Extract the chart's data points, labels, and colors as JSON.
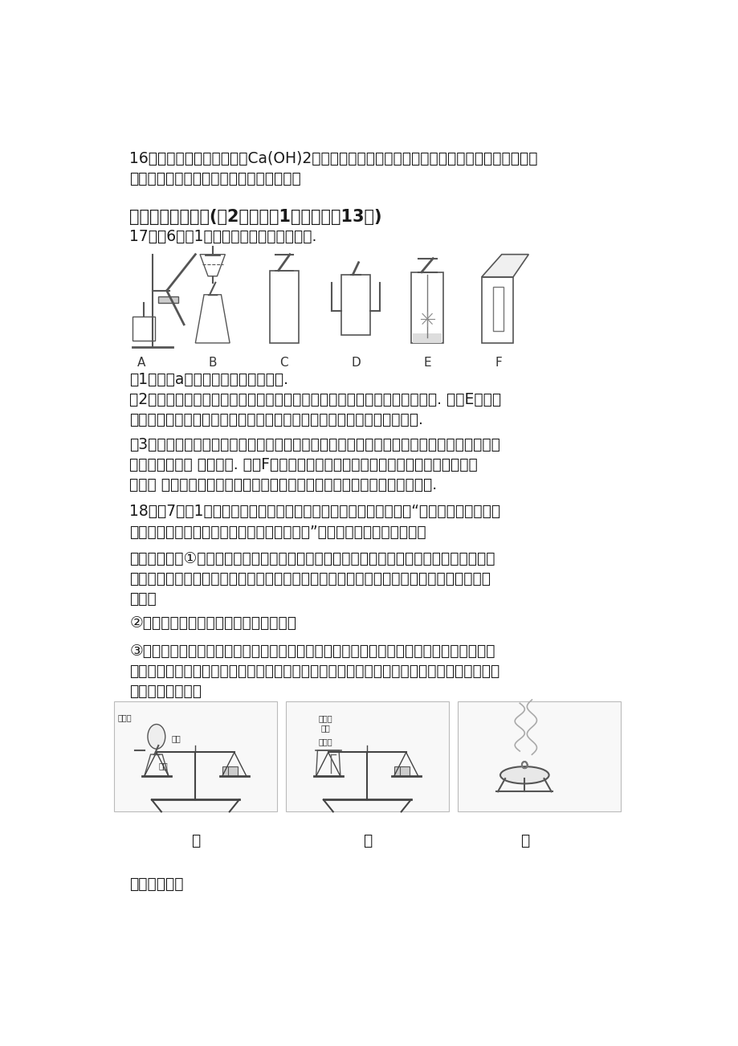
{
  "background_color": "#ffffff",
  "text_color": "#1a1a1a",
  "line16_1": "16．澄清石灰水（主要成分Ca(OH)2）敌露在空气中久了后，表面会产生一层白色固体粉末，",
  "line16_2": "这是为什么？同时写出反应的化学方程式。",
  "section4": "四、实验与探究题(割2个小题，1分／空，內13分)",
  "q17_header": "17．（6分，1分／空）根据如图回答问题.",
  "q17_1": "（1）仪器a的名称是＿＿＿＿＿＿＿.",
  "q17_2": "（2）实验室制取氧气时，选用的收集装置是＿＿＿＿（填字母序号，下同）. 如图E所示，",
  "q17_3": "铁丝与氧气反应的化学方程式为＿＿＿＿＿＿＿＿＿＿＿＿＿＿＿＿＿＿.",
  "q17_4": "（3）实验室用大理石和稀盐酸制取二氧化碳的化学方程式为＿＿＿＿＿＿＿＿＿＿＿＿＿，",
  "q17_5": "选用的发生装置 是＿＿＿. 如图F所示，将二氧化碳倒入烧杯中，观察到燃烧的蜡烛自",
  "q17_6": "下而上 依次息灭，说明二氧化碳具有的性质是＿＿＿＿＿＿＿＿＿＿＿＿＿.",
  "q18_1": "18．（7分，1分／空）甲、乙、丙三位同学利用图中的装置，围绕“用称量的方法验证化",
  "q18_2": "学反应是否遵守质量守恒定律并分析实验条件”这一探究目的的开展活动。",
  "steps1": "【实验步骤】①如图所示，甲将白磷和反应装置、乙将装有稀盐酸的小试管和碳酸钓粉末的",
  "steps2": "烧杯，分别放在两个托盘天平上，并用砖码使天平平衡。丙对石棉网和打磨干净的镉条进行",
  "steps3": "称量。",
  "steps4": "②三位同学分别利用装置进行化学反应。",
  "steps5": "③甲、乙同学在反应结束且甲的装置冷却后，将反应装置及装置内的物质放在反应前使用的",
  "steps6": "托盘天平上，观察天平是否平衡。丙同学实验结束后称量石棉网和石棉网上氧化镉的质量，比",
  "steps7": "较反应前后质量。",
  "label_jia": "甲",
  "label_yi": "乙",
  "label_bing": "丙",
  "exp_analysis": "【实验分析】",
  "apparatus_labels": [
    "A",
    "B",
    "C",
    "D",
    "E",
    "F"
  ],
  "label_boli": "玻璃管",
  "label_qiqiu": "气球",
  "label_balin": "白磷",
  "label_xiyansuan": "稀盐酸",
  "label_tansuan": "碳酸钓\n粉末"
}
